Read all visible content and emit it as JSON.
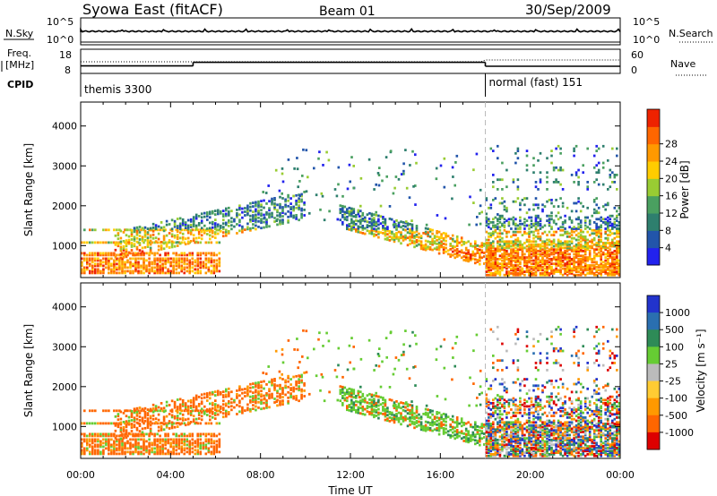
{
  "header": {
    "station": "Syowa East (fitACF)",
    "beam": "Beam 01",
    "date": "30/Sep/2009"
  },
  "top_strip": {
    "left_label": "N.Sky",
    "right_label": "N.Search",
    "ticks_left": [
      "10^5",
      "10^0"
    ],
    "ticks_right": [
      "10^5",
      "10^0"
    ]
  },
  "freq_strip": {
    "left_label_1": "Freq.",
    "left_label_2": "[MHz]",
    "ticks_left": [
      "18",
      "8"
    ],
    "right_label": "Nave",
    "ticks_right": [
      "60",
      "0"
    ],
    "freq_segments": [
      {
        "t0": 0,
        "t1": 5.0,
        "mhz": 11.2
      },
      {
        "t0": 5.0,
        "t1": 18.0,
        "mhz": 13.2
      },
      {
        "t0": 18.0,
        "t1": 24.0,
        "mhz": 11.0
      }
    ]
  },
  "cpid": {
    "label": "CPID",
    "segments": [
      {
        "t0": 0,
        "name": "themis 3300"
      },
      {
        "t0": 18.0,
        "name": "normal (fast) 151"
      }
    ]
  },
  "chart_data": [
    {
      "type": "heatmap",
      "name": "power",
      "ylabel": "Slant Range [km]",
      "x_range_hours": [
        0,
        24
      ],
      "ylim": [
        200,
        4600
      ],
      "yticks": [
        "1000",
        "2000",
        "3000",
        "4000"
      ],
      "colorbar": {
        "label": "Power [dB]",
        "ticks": [
          "4",
          "8",
          "12",
          "16",
          "20",
          "24",
          "28"
        ],
        "colors": [
          "#2222ee",
          "#2255aa",
          "#2e7f6e",
          "#4aa060",
          "#99cc33",
          "#ffcc00",
          "#ff9900",
          "#ff6600",
          "#ee2200"
        ]
      }
    },
    {
      "type": "heatmap",
      "name": "velocity",
      "ylabel": "Slant Range [km]",
      "x_range_hours": [
        0,
        24
      ],
      "ylim": [
        200,
        4600
      ],
      "yticks": [
        "1000",
        "2000",
        "3000",
        "4000"
      ],
      "xticks": [
        "00:00",
        "04:00",
        "08:00",
        "12:00",
        "16:00",
        "20:00",
        "00:00"
      ],
      "xlabel": "Time UT",
      "colorbar": {
        "label": "Velocity [m s⁻¹]",
        "ticks": [
          "1000",
          "500",
          "100",
          "25",
          "-25",
          "-100",
          "-500",
          "-1000"
        ],
        "colors": [
          "#2233cc",
          "#2a6fb0",
          "#2e8b57",
          "#66cc33",
          "#bbbbbb",
          "#ffcc33",
          "#ff9900",
          "#ff6600",
          "#dd0000"
        ]
      }
    }
  ]
}
